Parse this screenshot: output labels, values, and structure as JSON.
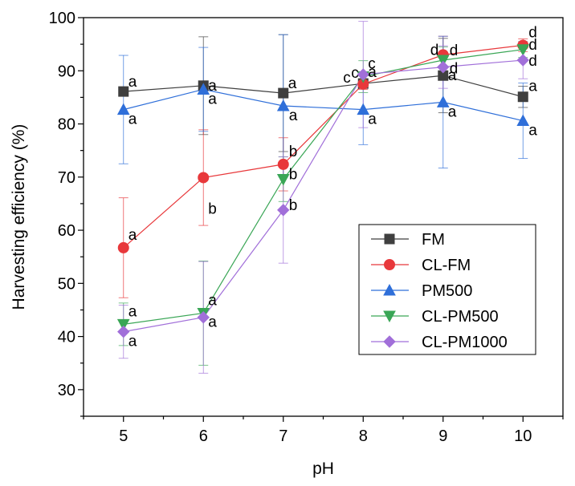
{
  "chart_data": {
    "type": "line",
    "xlabel": "pH",
    "ylabel": "Harvesting efficiency (%)",
    "xlim": [
      4.5,
      10.5
    ],
    "ylim": [
      25,
      100
    ],
    "x": [
      5,
      6,
      7,
      8,
      9,
      10
    ],
    "xticks": [
      "5",
      "6",
      "7",
      "8",
      "9",
      "10"
    ],
    "yticks": [
      "30",
      "40",
      "50",
      "60",
      "70",
      "80",
      "90",
      "100"
    ],
    "legend_position": "bottom-right",
    "grid": false,
    "series": [
      {
        "name": "FM",
        "color": "#3f3f3f",
        "marker": "square",
        "values": [
          86.1,
          87.2,
          85.8,
          87.6,
          89.1,
          85.1
        ],
        "errors": [
          0,
          9.2,
          11.0,
          0,
          7.0,
          2.0
        ],
        "letters": [
          "a",
          "a",
          "a",
          "a",
          "a",
          "a"
        ]
      },
      {
        "name": "CL-FM",
        "color": "#e8383b",
        "marker": "circle",
        "values": [
          56.7,
          69.9,
          72.4,
          87.5,
          93.0,
          94.8
        ],
        "errors": [
          9.4,
          9.0,
          5.0,
          1.0,
          3.5,
          1.2
        ],
        "letters": [
          "a",
          "b",
          "b",
          "c",
          "d",
          "d"
        ]
      },
      {
        "name": "PM500",
        "color": "#2f6fd9",
        "marker": "triangle-up",
        "values": [
          82.7,
          86.5,
          83.4,
          82.7,
          84.1,
          80.6
        ],
        "errors": [
          10.2,
          7.9,
          13.4,
          6.6,
          12.4,
          7.1
        ],
        "letters": [
          "a",
          "a",
          "a",
          "a",
          "a",
          "a"
        ]
      },
      {
        "name": "CL-PM500",
        "color": "#3aa656",
        "marker": "triangle-down",
        "values": [
          42.3,
          44.4,
          69.6,
          88.9,
          92.0,
          94.0
        ],
        "errors": [
          4.0,
          9.8,
          4.2,
          3.0,
          2.5,
          1.5
        ],
        "letters": [
          "a",
          "a",
          "b",
          "c",
          "d",
          "d"
        ]
      },
      {
        "name": "CL-PM1000",
        "color": "#a16fd9",
        "marker": "diamond",
        "values": [
          40.9,
          43.6,
          63.8,
          89.3,
          90.7,
          92.0
        ],
        "errors": [
          5.0,
          10.5,
          10.0,
          10.0,
          4.0,
          3.5
        ],
        "letters": [
          "a",
          "a",
          "b",
          "c",
          "d",
          "d"
        ]
      }
    ]
  }
}
